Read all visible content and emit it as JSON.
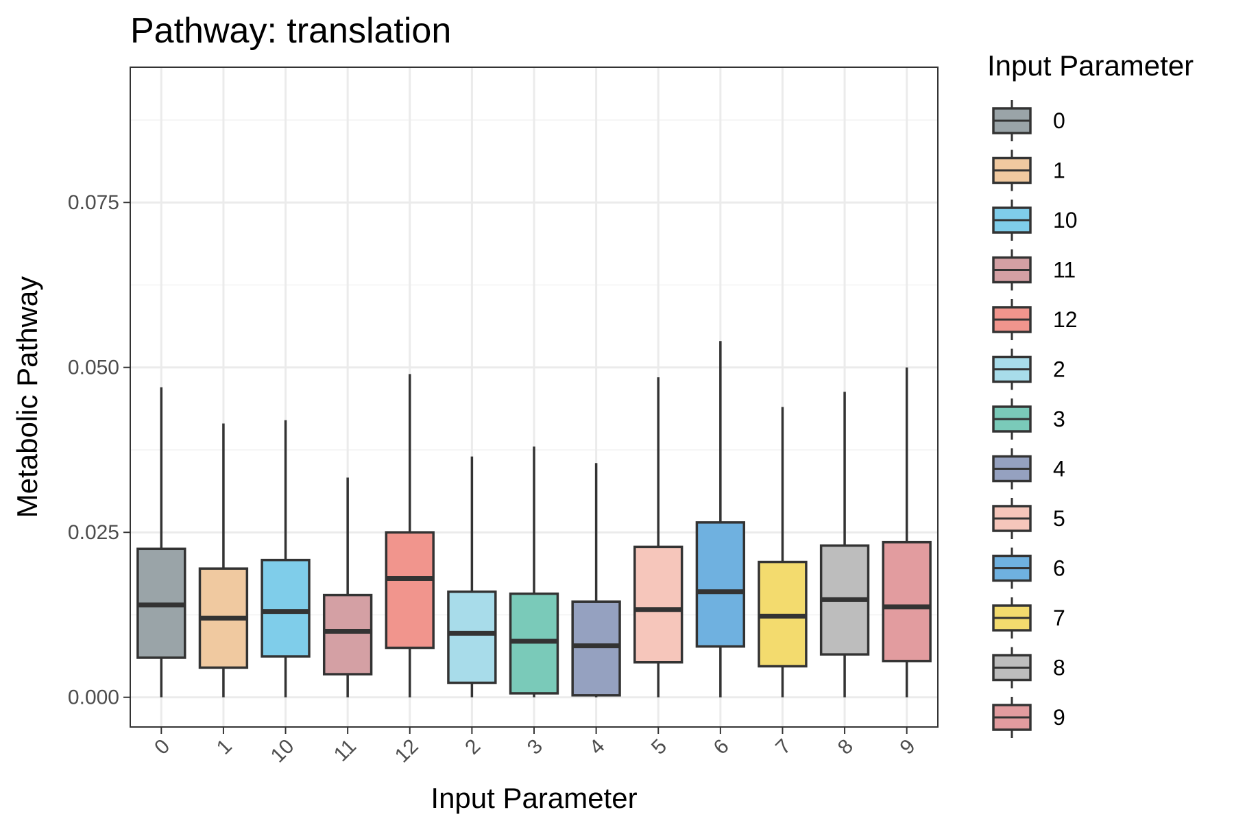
{
  "chart_data": {
    "type": "boxplot",
    "title": "Pathway: translation",
    "xlabel": "Input Parameter",
    "ylabel": "Metabolic Pathway",
    "ylim": [
      -0.0045,
      0.0955
    ],
    "yticks": [
      0.0,
      0.025,
      0.05,
      0.075
    ],
    "ytick_labels": [
      "0.000",
      "0.025",
      "0.050",
      "0.075"
    ],
    "grid": true,
    "legend": {
      "title": "Input Parameter",
      "position": "right"
    },
    "categories": [
      "0",
      "1",
      "10",
      "11",
      "12",
      "2",
      "3",
      "4",
      "5",
      "6",
      "7",
      "8",
      "9"
    ],
    "boxes": [
      {
        "category": "0",
        "min": 0.0,
        "q1": 0.006,
        "median": 0.014,
        "q3": 0.0225,
        "max": 0.047,
        "color": "#9aa4a8"
      },
      {
        "category": "1",
        "min": 0.0,
        "q1": 0.0045,
        "median": 0.012,
        "q3": 0.0195,
        "max": 0.0415,
        "color": "#f0c9a0"
      },
      {
        "category": "10",
        "min": 0.0,
        "q1": 0.0062,
        "median": 0.013,
        "q3": 0.0208,
        "max": 0.042,
        "color": "#7fcdea"
      },
      {
        "category": "11",
        "min": 0.0,
        "q1": 0.0035,
        "median": 0.01,
        "q3": 0.0155,
        "max": 0.0333,
        "color": "#d4a0a4"
      },
      {
        "category": "12",
        "min": 0.0,
        "q1": 0.0075,
        "median": 0.018,
        "q3": 0.025,
        "max": 0.049,
        "color": "#f1958d"
      },
      {
        "category": "2",
        "min": 0.0,
        "q1": 0.0022,
        "median": 0.0097,
        "q3": 0.016,
        "max": 0.0365,
        "color": "#a8dcea"
      },
      {
        "category": "3",
        "min": 0.0,
        "q1": 0.0006,
        "median": 0.0085,
        "q3": 0.0157,
        "max": 0.038,
        "color": "#7acab9"
      },
      {
        "category": "4",
        "min": 0.0,
        "q1": 0.0003,
        "median": 0.0078,
        "q3": 0.0145,
        "max": 0.0355,
        "color": "#95a1c0"
      },
      {
        "category": "5",
        "min": 0.0,
        "q1": 0.0053,
        "median": 0.0133,
        "q3": 0.0228,
        "max": 0.0485,
        "color": "#f6c6bb"
      },
      {
        "category": "6",
        "min": 0.0,
        "q1": 0.0077,
        "median": 0.016,
        "q3": 0.0265,
        "max": 0.054,
        "color": "#6fb1e0"
      },
      {
        "category": "7",
        "min": 0.0,
        "q1": 0.0047,
        "median": 0.0123,
        "q3": 0.0205,
        "max": 0.044,
        "color": "#f3db6e"
      },
      {
        "category": "8",
        "min": 0.0,
        "q1": 0.0065,
        "median": 0.0148,
        "q3": 0.023,
        "max": 0.0463,
        "color": "#bdbdbd"
      },
      {
        "category": "9",
        "min": 0.0,
        "q1": 0.0055,
        "median": 0.0137,
        "q3": 0.0235,
        "max": 0.05,
        "color": "#e29c9f"
      }
    ]
  }
}
